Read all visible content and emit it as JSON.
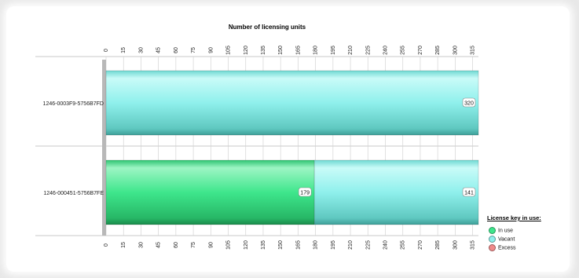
{
  "chart_data": {
    "type": "bar",
    "orientation": "horizontal",
    "stacked": true,
    "title": "Number of licensing units",
    "categories": [
      "1246-0003F9-5756B7FD",
      "1246-000451-5756B7FE"
    ],
    "series": [
      {
        "name": "In use",
        "values": [
          0,
          179
        ],
        "color": "#3ee68c"
      },
      {
        "name": "Vacant",
        "values": [
          320,
          141
        ],
        "color": "#8ff0ec"
      },
      {
        "name": "Excess",
        "values": [
          0,
          0
        ],
        "color": "#f08a8a"
      }
    ],
    "xlim": [
      0,
      320
    ],
    "ticks": [
      0,
      15,
      30,
      45,
      60,
      75,
      90,
      105,
      120,
      135,
      150,
      165,
      180,
      195,
      210,
      225,
      240,
      255,
      270,
      285,
      300,
      315
    ],
    "grid": true,
    "legend_position": "bottom-right",
    "legend_title": "License key in use:"
  }
}
